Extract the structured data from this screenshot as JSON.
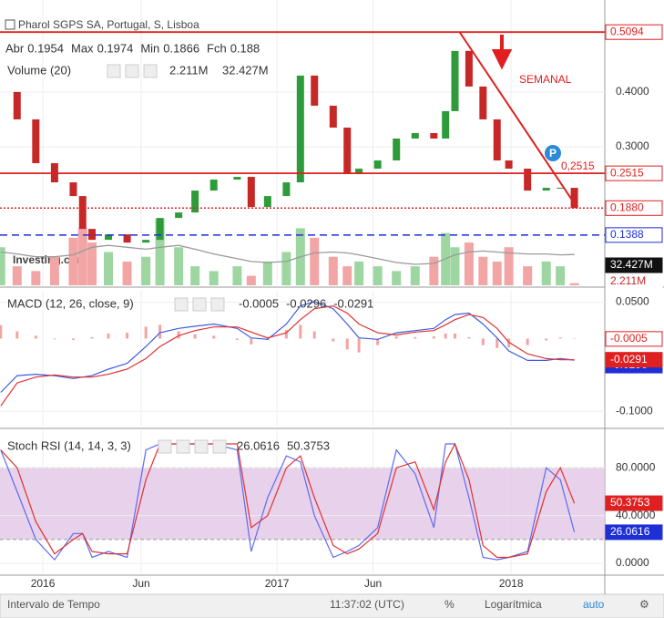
{
  "chart_data": [
    {
      "type": "candle",
      "title": "Pharol SGPS SA, Portugal, S, Lisboa",
      "ohlc": [
        {
          "label": "Abr",
          "value": 0.1954
        },
        {
          "label": "Max",
          "value": 0.1974
        },
        {
          "label": "Min",
          "value": 0.1866
        },
        {
          "label": "Fch",
          "value": 0.188
        }
      ],
      "x": [
        2015.82,
        2015.89,
        2015.97,
        2016.05,
        2016.13,
        2016.17,
        2016.21,
        2016.28,
        2016.36,
        2016.44,
        2016.5,
        2016.58,
        2016.65,
        2016.73,
        2016.83,
        2016.89,
        2016.96,
        2017.04,
        2017.1,
        2017.16,
        2017.24,
        2017.3,
        2017.35,
        2017.43,
        2017.51,
        2017.59,
        2017.67,
        2017.72,
        2017.76,
        2017.82,
        2017.88,
        2017.94,
        2017.99,
        2018.07,
        2018.15,
        2018.21,
        2018.27
      ],
      "values": [
        0.4,
        0.35,
        0.27,
        0.235,
        0.21,
        0.15,
        0.13,
        0.14,
        0.125,
        0.13,
        0.17,
        0.18,
        0.22,
        0.24,
        0.245,
        0.19,
        0.21,
        0.235,
        0.43,
        0.375,
        0.335,
        0.25,
        0.26,
        0.275,
        0.315,
        0.325,
        0.315,
        0.365,
        0.475,
        0.41,
        0.35,
        0.275,
        0.26,
        0.22,
        0.225,
        0.225,
        0.188
      ],
      "up_color": "#2e9b3a",
      "down_color": "#c62828",
      "xlim": [
        2015.817,
        2018.4
      ],
      "ylim": [
        0.047,
        0.568
      ],
      "yticks": [
        {
          "value": 0.4,
          "label": "0.4000"
        },
        {
          "value": 0.3,
          "label": "0.3000"
        }
      ],
      "levels": [
        {
          "value": 0.5094,
          "color": "#e02020",
          "style": "solid"
        },
        {
          "value": 0.2515,
          "color": "#e02020",
          "style": "solid"
        },
        {
          "value": 0.188,
          "label": "0.1880",
          "color": "#e02020",
          "style": "dotted"
        },
        {
          "value": 0.1388,
          "color": "#1f2fd6",
          "style": "dashed"
        }
      ],
      "trendline": {
        "x": [
          2017.78,
          2018.28
        ],
        "values": [
          0.5094,
          0.19
        ],
        "color": "#e02020"
      },
      "annotation": "SEMANAL",
      "level_note": "0,2515",
      "marker": "P",
      "volume": {
        "name": "Volume (20)",
        "values": [
          40,
          20,
          15,
          30,
          50,
          60,
          45,
          35,
          25,
          30,
          70,
          40,
          20,
          15,
          20,
          10,
          25,
          35,
          60,
          50,
          30,
          20,
          25,
          20,
          15,
          20,
          30,
          55,
          40,
          45,
          30,
          25,
          40,
          20,
          25,
          20,
          2.211
        ],
        "value_labels": {
          "36": "2.211M"
        },
        "ma": [
          35,
          33,
          30,
          30,
          32,
          36,
          40,
          42,
          40,
          38,
          40,
          42,
          38,
          33,
          28,
          25,
          24,
          25,
          30,
          34,
          35,
          34,
          32,
          28,
          24,
          22,
          23,
          28,
          32,
          35,
          36,
          35,
          34,
          33,
          33,
          32,
          32.427
        ],
        "ma_label": "32.427M",
        "y2lim": [
          0,
          300
        ],
        "up_color": "#9ed6a2",
        "down_color": "#f2a5a5"
      },
      "watermark": "Investing.com",
      "grid": true
    },
    {
      "type": "macd",
      "title": "MACD (12, 26, close, 9)",
      "ylim": [
        -0.121,
        0.067
      ],
      "yticks": [
        {
          "value": 0.05,
          "label": "0.0500"
        },
        {
          "value": -0.1,
          "label": "-0.1000"
        }
      ],
      "series": [
        {
          "color": "#f4a3a3",
          "kind": "histogram",
          "values": [
            0.0185,
            0.01,
            0.004,
            -0.001,
            -0.002,
            0,
            0.002,
            0.007,
            0.008,
            0.0165,
            0.019,
            0.01,
            0.006,
            0.004,
            -0.002,
            -0.008,
            -0.002,
            0.012,
            0.019,
            0.01,
            -0.004,
            -0.015,
            -0.019,
            -0.009,
            0.003,
            0.002,
            0.003,
            0.007,
            0.007,
            0.002,
            -0.009,
            -0.013,
            -0.012,
            -0.009,
            -0.0025,
            0.0015,
            -0.0005
          ]
        },
        {
          "color": "#3d5ce0",
          "values": [
            -0.074,
            -0.051,
            -0.049,
            -0.051,
            -0.055,
            -0.053,
            -0.051,
            -0.042,
            -0.034,
            -0.011,
            0.008,
            0.014,
            0.017,
            0.02,
            0.014,
            0.001,
            -0.001,
            0.02,
            0.045,
            0.051,
            0.041,
            0.02,
            0.001,
            -0.001,
            0.008,
            0.011,
            0.014,
            0.026,
            0.033,
            0.035,
            0.02,
            0.001,
            -0.017,
            -0.03,
            -0.03,
            -0.0275,
            -0.0296
          ]
        },
        {
          "color": "#e03131",
          "values": [
            -0.0925,
            -0.061,
            -0.053,
            -0.05,
            -0.053,
            -0.053,
            -0.053,
            -0.049,
            -0.042,
            -0.0275,
            -0.011,
            0.004,
            0.011,
            0.016,
            0.016,
            0.009,
            0.001,
            0.008,
            0.026,
            0.041,
            0.045,
            0.035,
            0.02,
            0.008,
            0.005,
            0.009,
            0.011,
            0.019,
            0.026,
            0.033,
            0.029,
            0.014,
            -0.005,
            -0.021,
            -0.0275,
            -0.029,
            -0.0291
          ]
        }
      ],
      "grid": true
    },
    {
      "type": "stoch",
      "title": "Stoch RSI (14, 14, 3, 3)",
      "ylim": [
        -9.1,
        110.7
      ],
      "yticks": [
        {
          "value": 80,
          "label": "80.0000"
        },
        {
          "value": 40,
          "label": "40.0000"
        },
        {
          "value": 0,
          "label": "0.0000"
        }
      ],
      "band": [
        20,
        80
      ],
      "band_color": "#e2c6e6",
      "series": [
        {
          "color": "#5b6cf0",
          "values": [
            95,
            60,
            20,
            3,
            25,
            25,
            5,
            10,
            5,
            95,
            100,
            100,
            100,
            100,
            95,
            10,
            55,
            90,
            85,
            40,
            5,
            10,
            15,
            30,
            95,
            75,
            30,
            100,
            100,
            55,
            5,
            3,
            5,
            10,
            80,
            70,
            26.0616
          ]
        },
        {
          "color": "#e03131",
          "values": [
            95,
            80,
            35,
            8,
            20,
            25,
            10,
            8,
            8,
            70,
            100,
            100,
            100,
            100,
            100,
            30,
            40,
            80,
            90,
            55,
            15,
            8,
            12,
            25,
            80,
            85,
            45,
            85,
            100,
            70,
            15,
            5,
            5,
            8,
            60,
            80,
            50.3753
          ]
        }
      ],
      "xticks": [
        {
          "value": 2016,
          "label": "2016"
        },
        {
          "value": 2016.42,
          "label": "Jun"
        },
        {
          "value": 2017,
          "label": "2017"
        },
        {
          "value": 2017.41,
          "label": "Jun"
        },
        {
          "value": 2018,
          "label": "2018"
        }
      ],
      "grid": true
    }
  ],
  "footer": {
    "interval": "Intervalo de Tempo",
    "time": "11:37:02 (UTC)",
    "percent": "%",
    "log": "Logarítmica",
    "auto": "auto"
  }
}
